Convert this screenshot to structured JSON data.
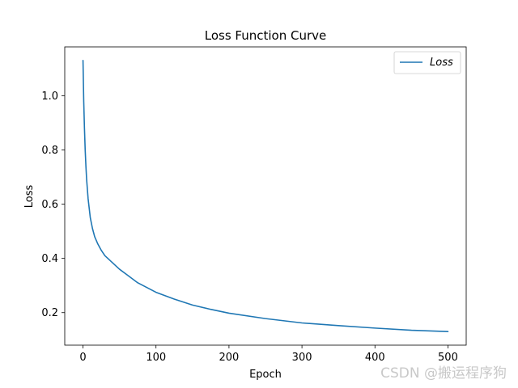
{
  "chart_data": {
    "type": "line",
    "title": "Loss Function Curve",
    "xlabel": "Epoch",
    "ylabel": "Loss",
    "xlim": [
      -25,
      525
    ],
    "ylim": [
      0.08,
      1.18
    ],
    "xticks": [
      0,
      100,
      200,
      300,
      400,
      500
    ],
    "yticks": [
      0.2,
      0.4,
      0.6,
      0.8,
      1.0
    ],
    "xtick_labels": [
      "0",
      "100",
      "200",
      "300",
      "400",
      "500"
    ],
    "ytick_labels": [
      "0.2",
      "0.4",
      "0.6",
      "0.8",
      "1.0"
    ],
    "legend_position": "top-right",
    "grid": false,
    "series": [
      {
        "name": "Loss",
        "color": "#1f77b4",
        "x": [
          0,
          1,
          2,
          3,
          4,
          5,
          7,
          10,
          13,
          16,
          20,
          25,
          30,
          40,
          50,
          60,
          75,
          100,
          125,
          150,
          175,
          200,
          250,
          300,
          350,
          400,
          450,
          500
        ],
        "y": [
          1.13,
          0.98,
          0.88,
          0.8,
          0.74,
          0.69,
          0.62,
          0.55,
          0.51,
          0.48,
          0.455,
          0.43,
          0.41,
          0.385,
          0.36,
          0.34,
          0.31,
          0.275,
          0.25,
          0.228,
          0.212,
          0.198,
          0.178,
          0.162,
          0.152,
          0.143,
          0.135,
          0.13
        ]
      }
    ]
  },
  "watermark": "CSDN @搬运程序狗"
}
